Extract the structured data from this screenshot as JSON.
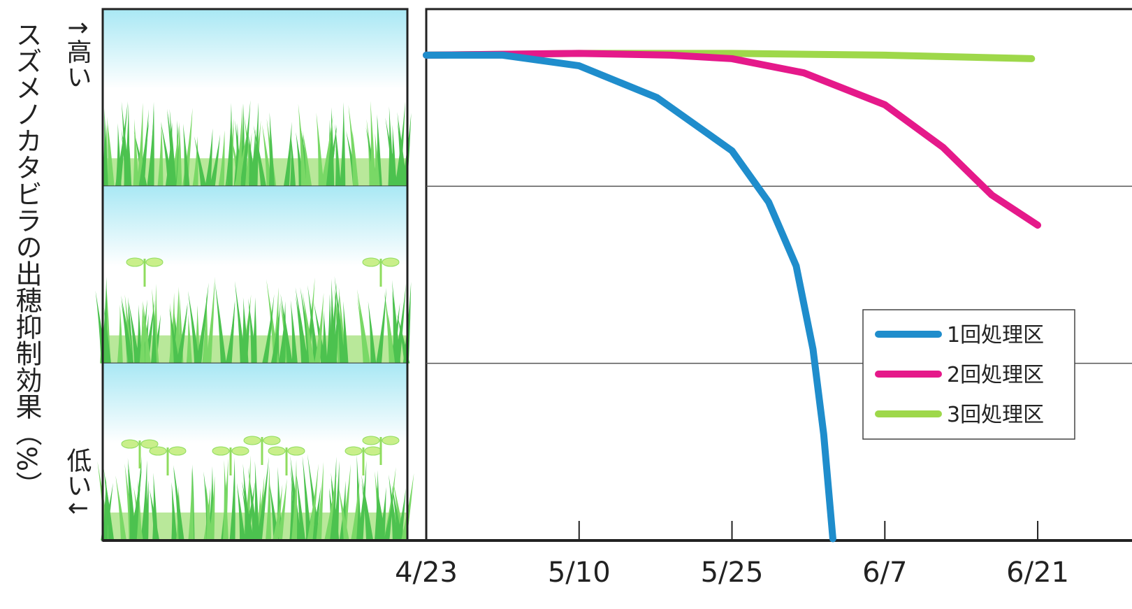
{
  "chart_data": {
    "type": "line",
    "y_label": "スズメノカタビラの出穂抑制効果（%）",
    "y_high": "↑高い",
    "y_low": "低い↓",
    "xlim": [
      0,
      4.37
    ],
    "xticks": [
      {
        "value": 0,
        "label": "4/23"
      },
      {
        "value": 1,
        "label": "5/10"
      },
      {
        "value": 2,
        "label": "5/25"
      },
      {
        "value": 3,
        "label": "6/7"
      },
      {
        "value": 4,
        "label": "6/21"
      }
    ],
    "ylim": [
      0,
      3
    ],
    "ygrid": [
      1,
      2
    ],
    "legend": "lower right",
    "series": [
      {
        "name": "1回処理区",
        "color": "#1f8dcc",
        "x": [
          0,
          0.5,
          1.0,
          1.51,
          2.0,
          2.24,
          2.42,
          2.53,
          2.6,
          2.66
        ],
        "values": [
          2.74,
          2.74,
          2.68,
          2.5,
          2.2,
          1.91,
          1.55,
          1.08,
          0.6,
          0.01
        ]
      },
      {
        "name": "2回処理区",
        "color": "#e5198a",
        "x": [
          0,
          1.0,
          1.6,
          2.0,
          2.47,
          3.0,
          3.38,
          3.7,
          4.0
        ],
        "values": [
          2.74,
          2.75,
          2.74,
          2.72,
          2.64,
          2.46,
          2.22,
          1.95,
          1.78
        ]
      },
      {
        "name": "3回処理区",
        "color": "#9ed84a",
        "x": [
          0,
          1,
          2,
          3,
          3.96
        ],
        "values": [
          2.74,
          2.75,
          2.75,
          2.74,
          2.72
        ]
      }
    ]
  }
}
